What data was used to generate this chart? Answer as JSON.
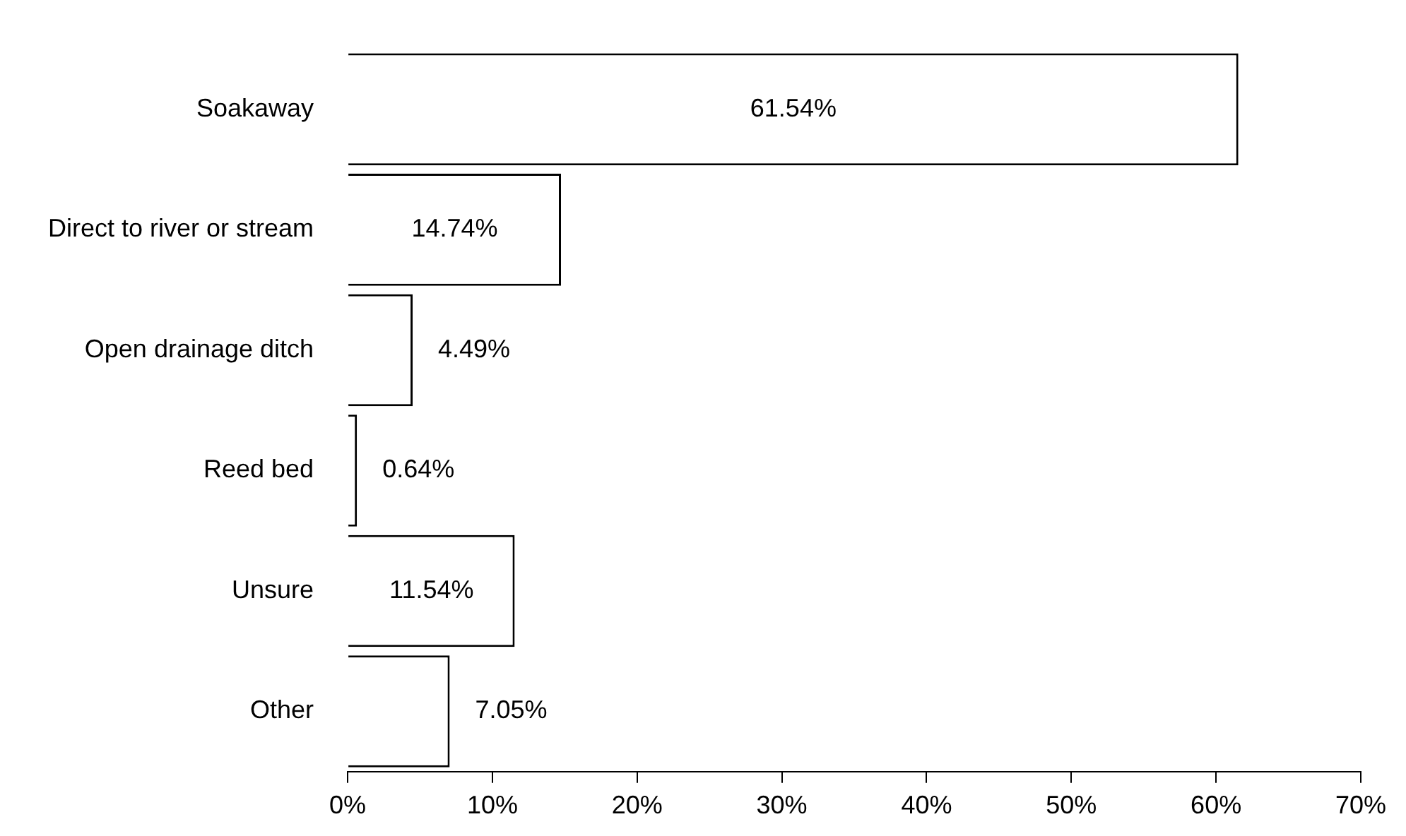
{
  "chart_data": {
    "type": "bar",
    "orientation": "horizontal",
    "categories": [
      "Soakaway",
      "Direct to river or stream",
      "Open drainage ditch",
      "Reed bed",
      "Unsure",
      "Other"
    ],
    "values": [
      61.54,
      14.74,
      4.49,
      0.64,
      11.54,
      7.05
    ],
    "value_labels": [
      "61.54%",
      "14.74%",
      "4.49%",
      "0.64%",
      "11.54%",
      "7.05%"
    ],
    "color": "#ffffff",
    "xlim": [
      0,
      70
    ],
    "xticks": [
      {
        "value": 0,
        "label": "0%"
      },
      {
        "value": 10,
        "label": "10%"
      },
      {
        "value": 20,
        "label": "20%"
      },
      {
        "value": 30,
        "label": "30%"
      },
      {
        "value": 40,
        "label": "40%"
      },
      {
        "value": 50,
        "label": "50%"
      },
      {
        "value": 60,
        "label": "60%"
      },
      {
        "value": 70,
        "label": "70%"
      }
    ],
    "grid": false
  }
}
